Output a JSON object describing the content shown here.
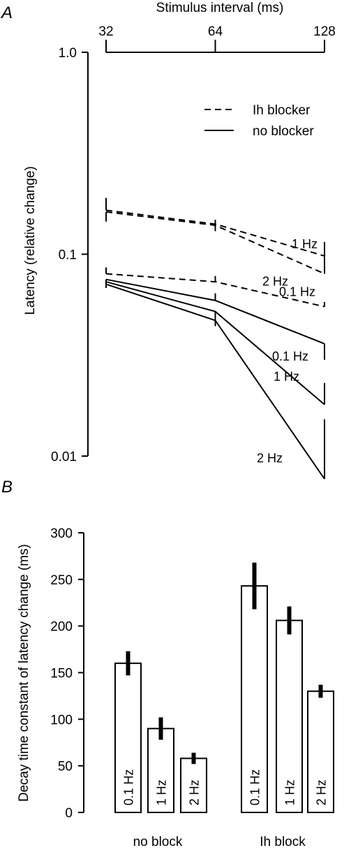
{
  "panels": [
    {
      "label": "A"
    },
    {
      "label": "B"
    }
  ],
  "chart_data": [
    {
      "type": "line",
      "xlabel": "Stimulus interval (ms)",
      "ylabel": "Latency (relative change)",
      "x_scale": "log",
      "y_scale": "log",
      "x": [
        32,
        64,
        128
      ],
      "xticks": [
        "32",
        "64",
        "128"
      ],
      "yticks": [
        "1.0",
        "0.1",
        "0.01"
      ],
      "xlim": [
        32,
        128
      ],
      "ylim": [
        0.01,
        1.0
      ],
      "legend_position": "top-right",
      "legend": [
        {
          "label": "Ih blocker",
          "style": "dashed"
        },
        {
          "label": "no blocker",
          "style": "solid"
        }
      ],
      "series": [
        {
          "label": "1 Hz",
          "group": "Ih blocker",
          "style": "dashed",
          "values": [
            0.165,
            0.141,
            0.098
          ],
          "err": [
            0.19,
            0.148,
            0.115
          ]
        },
        {
          "label": "2 Hz",
          "group": "Ih blocker",
          "style": "dashed",
          "values": [
            0.162,
            0.139,
            0.08
          ],
          "err": [
            0.145,
            0.13,
            0.115
          ]
        },
        {
          "label": "0.1 Hz",
          "group": "Ih blocker",
          "style": "dashed",
          "values": [
            0.08,
            0.073,
            0.055
          ],
          "err": [
            0.086,
            0.078,
            0.058
          ]
        },
        {
          "label": "0.1 Hz",
          "group": "no blocker",
          "style": "solid",
          "values": [
            0.075,
            0.059,
            0.036
          ],
          "err": [
            0.072,
            0.064,
            0.03
          ]
        },
        {
          "label": "1 Hz",
          "group": "no blocker",
          "style": "solid",
          "values": [
            0.073,
            0.052,
            0.018
          ],
          "err": [
            0.07,
            0.045,
            0.023
          ]
        },
        {
          "label": "2 Hz",
          "group": "no blocker",
          "style": "solid",
          "values": [
            0.071,
            0.047,
            0.0077
          ],
          "err": [
            0.068,
            0.044,
            0.0152
          ]
        }
      ]
    },
    {
      "type": "bar",
      "ylabel": "Decay time constant of latency change (ms)",
      "ylim": [
        0,
        300
      ],
      "yticks": [
        0,
        50,
        100,
        150,
        200,
        250,
        300
      ],
      "groups": [
        {
          "label": "no block",
          "bars": [
            {
              "label": "0.1 Hz",
              "value": 160,
              "err": 13
            },
            {
              "label": "1 Hz",
              "value": 90,
              "err": 12
            },
            {
              "label": "2 Hz",
              "value": 58,
              "err": 6
            }
          ]
        },
        {
          "label": "Ih block",
          "bars": [
            {
              "label": "0.1 Hz",
              "value": 243,
              "err": 25
            },
            {
              "label": "1 Hz",
              "value": 206,
              "err": 15
            },
            {
              "label": "2 Hz",
              "value": 130,
              "err": 7
            }
          ]
        }
      ]
    }
  ]
}
